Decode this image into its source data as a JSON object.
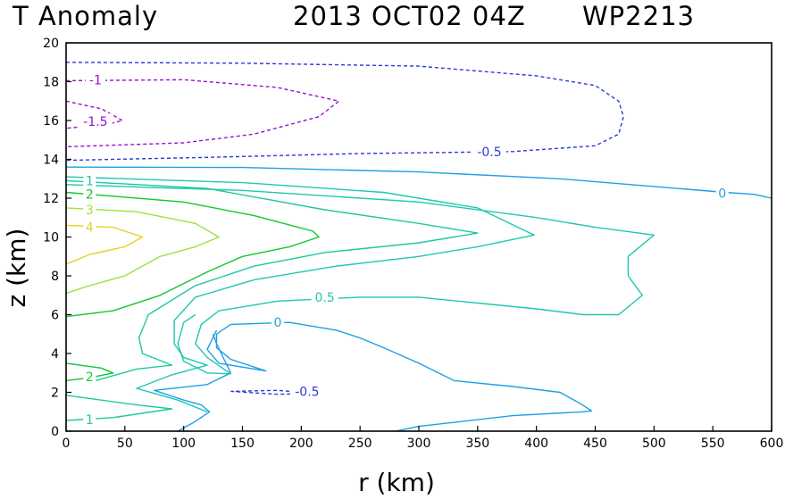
{
  "chart_data": {
    "type": "contour",
    "title_parts": [
      "T Anomaly",
      "2013 OCT02 04Z",
      "WP2213"
    ],
    "xlabel": "r (km)",
    "ylabel": "z (km)",
    "xlim": [
      0,
      600
    ],
    "ylim": [
      0,
      20
    ],
    "x_ticks": [
      0,
      50,
      100,
      150,
      200,
      250,
      300,
      350,
      400,
      450,
      500,
      550,
      600
    ],
    "y_ticks": [
      0,
      2,
      4,
      6,
      8,
      10,
      12,
      14,
      16,
      18,
      20
    ],
    "colors": {
      "c_m1_5": "#9a10d0",
      "c_m1": "#9a10d0",
      "c_m0_5": "#2a3ad8",
      "c_0": "#1ea0e6",
      "c_0_5": "#1fc8b0",
      "c_1": "#1fc8a0",
      "c_2": "#10c830",
      "c_3": "#a0e040",
      "c_4": "#e8d020"
    },
    "contours": [
      {
        "level": -0.5,
        "color_key": "c_m0_5",
        "dashed": true,
        "label": "-0.5",
        "label_at": [
          360,
          14.4
        ],
        "points": [
          [
            0,
            19
          ],
          [
            150,
            18.95
          ],
          [
            300,
            18.8
          ],
          [
            400,
            18.3
          ],
          [
            450,
            17.8
          ],
          [
            470,
            17.0
          ],
          [
            474,
            16.2
          ],
          [
            470,
            15.3
          ],
          [
            450,
            14.7
          ],
          [
            380,
            14.4
          ],
          [
            250,
            14.3
          ],
          [
            120,
            14.1
          ],
          [
            0,
            13.95
          ]
        ]
      },
      {
        "level": -0.5,
        "color_key": "c_m0_5",
        "dashed": true,
        "label": "-0.5",
        "label_at": [
          205,
          2.05
        ],
        "points": [
          [
            140,
            2.05
          ],
          [
            180,
            1.9
          ],
          [
            210,
            1.95
          ],
          [
            180,
            2.1
          ],
          [
            140,
            2.05
          ]
        ]
      },
      {
        "level": -1,
        "color_key": "c_m1",
        "dashed": true,
        "label": "-1",
        "label_at": [
          25,
          18.1
        ],
        "points": [
          [
            0,
            18.05
          ],
          [
            100,
            18.1
          ],
          [
            180,
            17.7
          ],
          [
            232,
            17.0
          ],
          [
            215,
            16.2
          ],
          [
            160,
            15.3
          ],
          [
            100,
            14.85
          ],
          [
            0,
            14.65
          ]
        ]
      },
      {
        "level": -1.5,
        "color_key": "c_m1_5",
        "dashed": true,
        "label": "-1.5",
        "label_at": [
          25,
          15.95
        ],
        "points": [
          [
            0,
            17.0
          ],
          [
            30,
            16.6
          ],
          [
            48,
            16.0
          ],
          [
            35,
            15.8
          ],
          [
            0,
            15.6
          ]
        ]
      },
      {
        "level": 0,
        "color_key": "c_0",
        "dashed": false,
        "label": "0",
        "label_at": [
          558,
          12.25
        ],
        "points": [
          [
            0,
            13.6
          ],
          [
            150,
            13.58
          ],
          [
            300,
            13.35
          ],
          [
            420,
            13.0
          ],
          [
            500,
            12.6
          ],
          [
            560,
            12.3
          ],
          [
            585,
            12.2
          ],
          [
            600,
            12.0
          ]
        ]
      },
      {
        "level": 0,
        "color_key": "c_0",
        "dashed": false,
        "label": "0",
        "label_at": [
          180,
          5.6
        ],
        "points": [
          [
            280,
            0
          ],
          [
            300,
            0.25
          ],
          [
            380,
            0.8
          ],
          [
            440,
            1.0
          ],
          [
            447,
            1.05
          ],
          [
            435,
            1.5
          ],
          [
            420,
            2.0
          ],
          [
            380,
            2.3
          ],
          [
            330,
            2.6
          ],
          [
            300,
            3.5
          ],
          [
            270,
            4.3
          ],
          [
            250,
            4.8
          ],
          [
            230,
            5.2
          ],
          [
            190,
            5.6
          ],
          [
            140,
            5.5
          ],
          [
            128,
            5.0
          ],
          [
            128,
            4.3
          ],
          [
            140,
            3.7
          ],
          [
            170,
            3.1
          ],
          [
            130,
            3.5
          ],
          [
            120,
            4.2
          ],
          [
            128,
            5.2
          ]
        ]
      },
      {
        "level": 0,
        "color_key": "c_0",
        "dashed": false,
        "label": "",
        "points": [
          [
            95,
            0
          ],
          [
            110,
            0.5
          ],
          [
            122,
            1.0
          ],
          [
            115,
            1.35
          ],
          [
            100,
            1.6
          ],
          [
            75,
            2.1
          ],
          [
            120,
            2.4
          ],
          [
            140,
            3.0
          ],
          [
            128,
            4.5
          ],
          [
            125,
            5.0
          ]
        ]
      },
      {
        "level": 0.5,
        "color_key": "c_0_5",
        "dashed": false,
        "label": "0.5",
        "label_at": [
          220,
          6.9
        ],
        "points": [
          [
            0,
            12.7
          ],
          [
            150,
            12.4
          ],
          [
            300,
            11.8
          ],
          [
            400,
            11.0
          ],
          [
            450,
            10.5
          ],
          [
            500,
            10.1
          ],
          [
            478,
            9.0
          ],
          [
            478,
            8.0
          ],
          [
            490,
            7.0
          ],
          [
            470,
            6.0
          ],
          [
            440,
            6.0
          ],
          [
            400,
            6.3
          ],
          [
            350,
            6.6
          ],
          [
            300,
            6.9
          ],
          [
            250,
            6.9
          ],
          [
            180,
            6.7
          ],
          [
            130,
            6.2
          ],
          [
            115,
            5.5
          ],
          [
            110,
            4.5
          ],
          [
            120,
            3.8
          ],
          [
            140,
            2.95
          ],
          [
            120,
            3.0
          ],
          [
            100,
            3.6
          ],
          [
            95,
            4.5
          ],
          [
            100,
            5.6
          ],
          [
            110,
            6.0
          ]
        ]
      },
      {
        "level": 0.5,
        "color_key": "c_0_5",
        "dashed": false,
        "label": "",
        "points": [
          [
            0,
            13.1
          ],
          [
            150,
            12.8
          ],
          [
            270,
            12.3
          ],
          [
            350,
            11.5
          ],
          [
            398,
            10.1
          ],
          [
            350,
            9.5
          ],
          [
            300,
            9.0
          ],
          [
            230,
            8.5
          ],
          [
            160,
            7.8
          ],
          [
            110,
            6.9
          ],
          [
            92,
            5.7
          ],
          [
            92,
            4.5
          ],
          [
            100,
            3.8
          ],
          [
            120,
            3.4
          ],
          [
            90,
            2.9
          ],
          [
            60,
            2.2
          ],
          [
            95,
            1.6
          ],
          [
            120,
            1.0
          ]
        ]
      },
      {
        "level": 1,
        "color_key": "c_1",
        "dashed": false,
        "label": "1",
        "label_at": [
          20,
          12.9
        ],
        "points": [
          [
            0,
            12.9
          ],
          [
            120,
            12.5
          ],
          [
            220,
            11.4
          ],
          [
            300,
            10.7
          ],
          [
            350,
            10.2
          ],
          [
            300,
            9.7
          ],
          [
            220,
            9.2
          ],
          [
            160,
            8.5
          ],
          [
            110,
            7.5
          ],
          [
            70,
            6.0
          ],
          [
            62,
            4.8
          ],
          [
            65,
            4.0
          ],
          [
            90,
            3.4
          ],
          [
            60,
            3.2
          ],
          [
            25,
            2.6
          ]
        ]
      },
      {
        "level": 1,
        "color_key": "c_1",
        "dashed": false,
        "label": "1",
        "label_at": [
          20,
          0.6
        ],
        "points": [
          [
            0,
            0.55
          ],
          [
            40,
            0.7
          ],
          [
            90,
            1.15
          ],
          [
            60,
            1.35
          ],
          [
            30,
            1.6
          ],
          [
            0,
            1.85
          ]
        ]
      },
      {
        "level": 2,
        "color_key": "c_2",
        "dashed": false,
        "label": "2",
        "label_at": [
          20,
          12.2
        ],
        "points": [
          [
            0,
            12.3
          ],
          [
            100,
            11.8
          ],
          [
            160,
            11.1
          ],
          [
            210,
            10.3
          ],
          [
            215,
            10.0
          ],
          [
            190,
            9.5
          ],
          [
            150,
            9.0
          ],
          [
            120,
            8.2
          ],
          [
            80,
            7.0
          ],
          [
            40,
            6.2
          ],
          [
            0,
            5.9
          ]
        ]
      },
      {
        "level": 2,
        "color_key": "c_2",
        "dashed": false,
        "label": "2",
        "label_at": [
          20,
          2.8
        ],
        "points": [
          [
            0,
            3.5
          ],
          [
            30,
            3.25
          ],
          [
            40,
            3.0
          ],
          [
            20,
            2.75
          ],
          [
            0,
            2.6
          ]
        ]
      },
      {
        "level": 3,
        "color_key": "c_3",
        "dashed": false,
        "label": "3",
        "label_at": [
          20,
          11.4
        ],
        "points": [
          [
            0,
            11.5
          ],
          [
            60,
            11.3
          ],
          [
            110,
            10.7
          ],
          [
            130,
            10.0
          ],
          [
            110,
            9.5
          ],
          [
            80,
            9.0
          ],
          [
            50,
            8.0
          ],
          [
            20,
            7.5
          ],
          [
            0,
            7.1
          ]
        ]
      },
      {
        "level": 4,
        "color_key": "c_4",
        "dashed": false,
        "label": "4",
        "label_at": [
          20,
          10.5
        ],
        "points": [
          [
            0,
            10.6
          ],
          [
            40,
            10.5
          ],
          [
            65,
            10.0
          ],
          [
            50,
            9.5
          ],
          [
            20,
            9.1
          ],
          [
            0,
            8.6
          ]
        ]
      }
    ]
  }
}
